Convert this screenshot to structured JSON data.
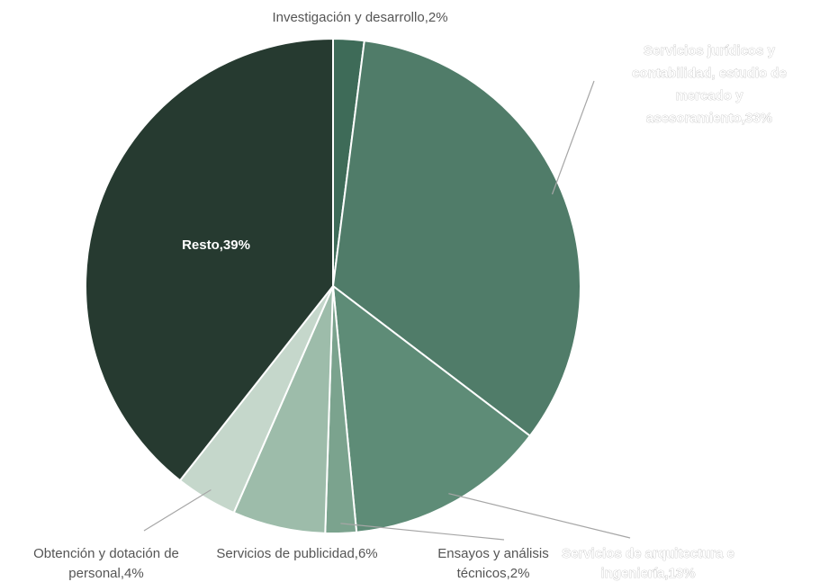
{
  "chart_data": {
    "type": "pie",
    "slices": [
      {
        "label": "Investigación y desarrollo",
        "display": "Investigación y desarrollo,2%",
        "value": 2,
        "color": "#3e6b58"
      },
      {
        "label": "Servicios jurídicos y contabilidad, estudio de mercado y asesoramiento",
        "display": "Servicios jurídicos y contabilidad, estudio de mercado y asesoramiento,33%",
        "value": 33,
        "color": "#507c69"
      },
      {
        "label": "Servicios de arquitectura e ingeniería",
        "display": "Servicios de arquitectura e ingeniería,13%",
        "value": 13,
        "color": "#5e8c77"
      },
      {
        "label": "Ensayos y análisis técnicos",
        "display": "Ensayos y análisis técnicos,2%",
        "value": 2,
        "color": "#7ba38e"
      },
      {
        "label": "Servicios de publicidad",
        "display": "Servicios de publicidad,6%",
        "value": 6,
        "color": "#9dbcaa"
      },
      {
        "label": "Obtención y dotación de personal",
        "display": "Obtención y dotación de personal,4%",
        "value": 4,
        "color": "#c5d7cb"
      },
      {
        "label": "Resto",
        "display": "Resto,39%",
        "value": 39,
        "color": "#263a30"
      }
    ],
    "label_lines": {
      "investigacion": [
        "Investigación y desarrollo,2%"
      ],
      "juridicos": [
        "Servicios jurídicos y",
        "contabilidad, estudio de",
        "mercado y",
        "asesoramiento,33%"
      ],
      "arquitectura": [
        "Servicios de arquitectura e",
        "ingeniería,13%"
      ],
      "ensayos": [
        "Ensayos y análisis",
        "técnicos,2%"
      ],
      "publicidad": [
        "Servicios de publicidad,6%"
      ],
      "obtencion": [
        "Obtención y dotación de",
        "personal,4%"
      ],
      "resto": [
        "Resto,39%"
      ]
    }
  }
}
